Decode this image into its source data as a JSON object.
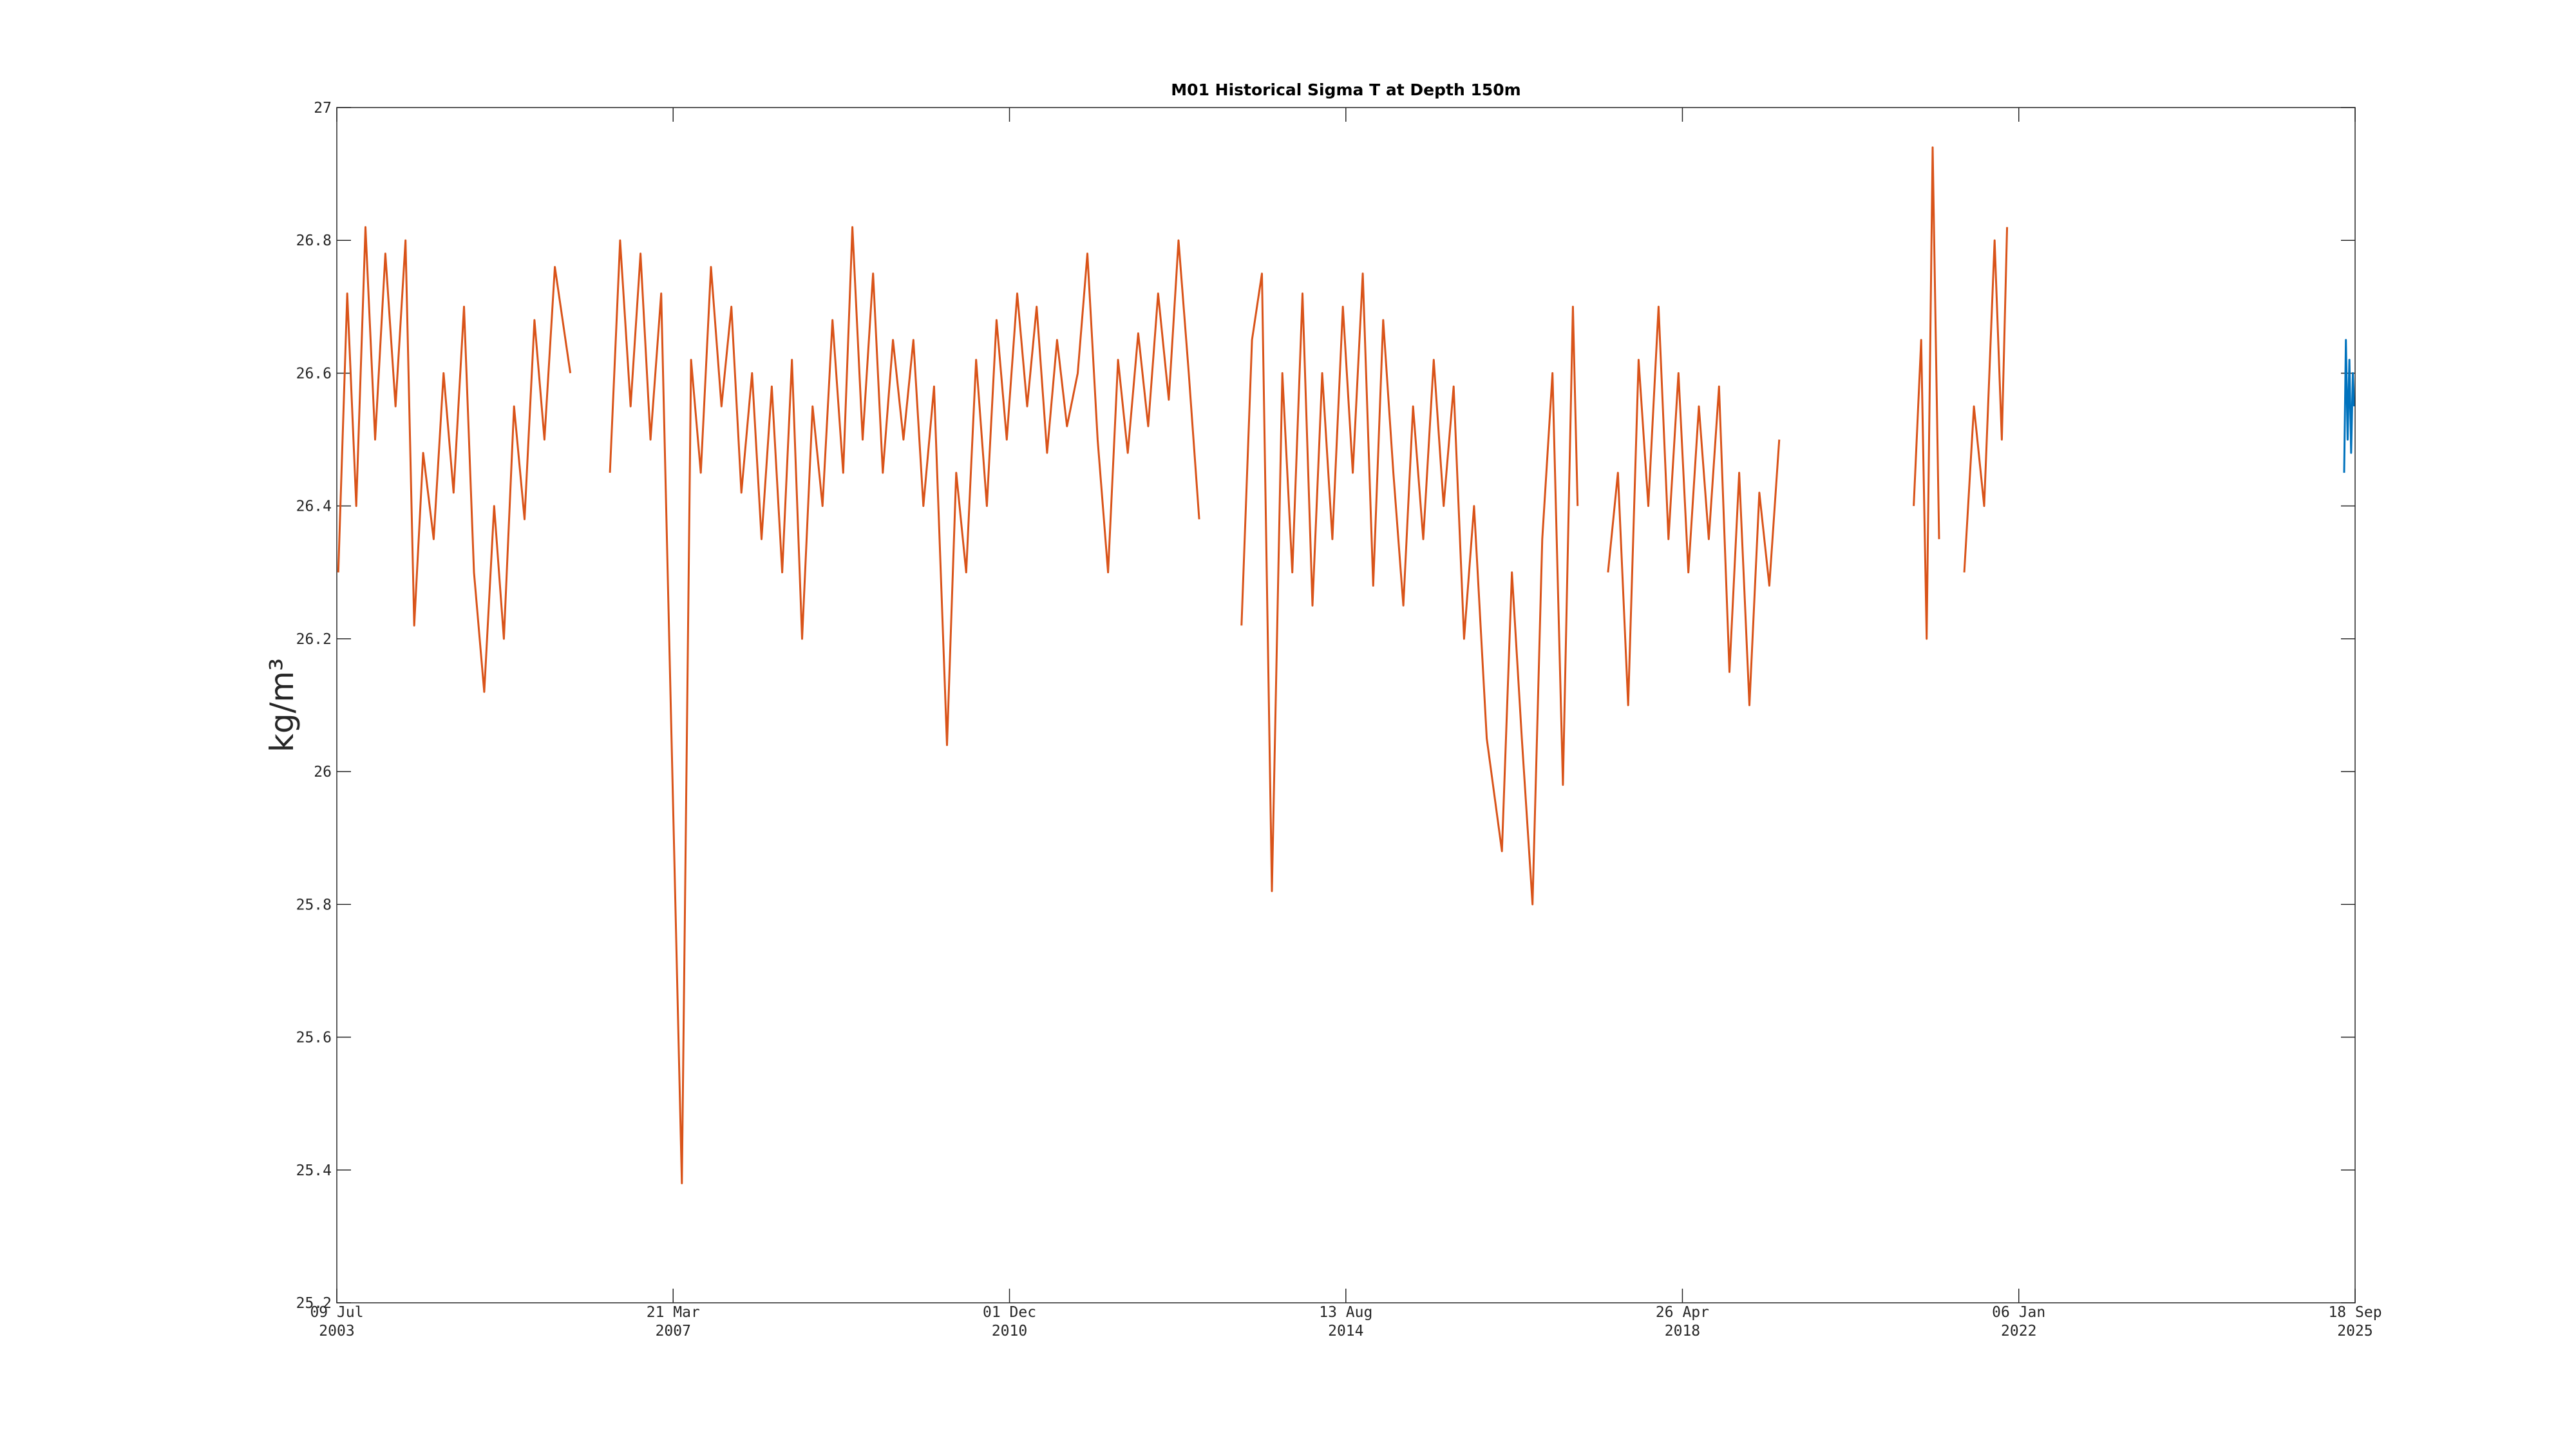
{
  "chart_data": {
    "type": "line",
    "title": "M01 Historical Sigma T at Depth 150m",
    "ylabel": "kg/m³",
    "xlim": [
      "2003-07-09",
      "2025-09-18"
    ],
    "xticks": [
      {
        "value": "2003-07-09",
        "label": "09 Jul 2003"
      },
      {
        "value": "2007-03-21",
        "label": "21 Mar 2007"
      },
      {
        "value": "2010-12-01",
        "label": "01 Dec 2010"
      },
      {
        "value": "2014-08-13",
        "label": "13 Aug 2014"
      },
      {
        "value": "2018-04-26",
        "label": "26 Apr 2018"
      },
      {
        "value": "2022-01-06",
        "label": "06 Jan 2022"
      },
      {
        "value": "2025-09-18",
        "label": "18 Sep 2025"
      }
    ],
    "ylim": [
      25.2,
      27
    ],
    "yticks": [
      25.2,
      25.4,
      25.6,
      25.8,
      26,
      26.2,
      26.4,
      26.6,
      26.8,
      27
    ],
    "grid": false,
    "series": [
      {
        "color": "#d95319",
        "x": [
          "2003-07-15",
          "2003-08-20",
          "2003-09-25",
          "2003-11-01",
          "2003-12-10",
          "2004-01-20",
          "2004-03-01",
          "2004-04-10",
          "2004-05-15",
          "2004-06-20",
          "2004-08-01",
          "2004-09-10",
          "2004-10-20",
          "2004-12-01",
          "2005-01-10",
          "2005-02-20",
          "2005-04-01",
          "2005-05-10",
          "2005-06-20",
          "2005-08-01",
          "2005-09-10",
          "2005-10-20",
          "2005-12-01",
          "2006-02-01",
          "2006-04-01",
          "2006-07-10",
          "2006-08-20",
          "2006-10-01",
          "2006-11-10",
          "2006-12-20",
          "2007-02-01",
          "2007-04-25",
          "2007-06-01",
          "2007-07-10",
          "2007-08-20",
          "2007-10-01",
          "2007-11-10",
          "2007-12-20",
          "2008-02-01",
          "2008-03-10",
          "2008-04-20",
          "2008-06-01",
          "2008-07-10",
          "2008-08-20",
          "2008-10-01",
          "2008-11-10",
          "2008-12-20",
          "2009-02-01",
          "2009-03-10",
          "2009-04-20",
          "2009-06-01",
          "2009-07-10",
          "2009-08-20",
          "2009-10-01",
          "2009-11-10",
          "2009-12-20",
          "2010-02-01",
          "2010-03-25",
          "2010-05-01",
          "2010-06-10",
          "2010-07-20",
          "2010-09-01",
          "2010-10-10",
          "2010-11-20",
          "2011-01-01",
          "2011-02-10",
          "2011-03-20",
          "2011-05-01",
          "2011-06-10",
          "2011-07-20",
          "2011-09-01",
          "2011-10-10",
          "2011-11-20",
          "2012-01-01",
          "2012-02-10",
          "2012-03-20",
          "2012-05-01",
          "2012-06-10",
          "2012-07-20",
          "2012-09-01",
          "2012-10-10",
          "2012-11-20",
          "2013-01-01",
          "2013-03-15",
          "2013-06-20",
          "2013-08-01",
          "2013-09-10",
          "2013-10-20",
          "2013-12-01",
          "2014-01-10",
          "2014-02-20",
          "2014-04-01",
          "2014-05-10",
          "2014-06-20",
          "2014-08-01",
          "2014-09-10",
          "2014-10-20",
          "2014-12-01",
          "2015-01-10",
          "2015-02-20",
          "2015-04-01",
          "2015-05-10",
          "2015-06-20",
          "2015-08-01",
          "2015-09-10",
          "2015-10-20",
          "2015-12-01",
          "2016-01-10",
          "2016-03-01",
          "2016-05-01",
          "2016-06-10",
          "2016-07-20",
          "2016-09-01",
          "2016-10-10",
          "2016-11-20",
          "2017-01-01",
          "2017-02-10",
          "2017-03-01",
          "2017-04-15",
          "2017-07-01",
          "2017-08-10",
          "2017-09-20",
          "2017-11-01",
          "2017-12-10",
          "2018-01-20",
          "2018-03-01",
          "2018-04-10",
          "2018-05-20",
          "2018-07-01",
          "2018-08-10",
          "2018-09-20",
          "2018-11-01",
          "2018-12-10",
          "2019-01-20",
          "2019-03-01",
          "2019-04-10",
          "2019-05-20",
          "2019-07-01",
          "2020-11-10",
          "2020-12-10",
          "2021-01-01",
          "2021-01-25",
          "2021-02-20",
          "2021-04-01",
          "2021-06-01",
          "2021-07-10",
          "2021-08-20",
          "2021-10-01",
          "2021-10-30",
          "2021-11-20"
        ],
        "values": [
          26.3,
          26.72,
          26.4,
          26.82,
          26.5,
          26.78,
          26.55,
          26.8,
          26.22,
          26.48,
          26.35,
          26.6,
          26.42,
          26.7,
          26.3,
          26.12,
          26.4,
          26.2,
          26.55,
          26.38,
          26.68,
          26.5,
          26.76,
          26.6,
          null,
          26.45,
          26.8,
          26.55,
          26.78,
          26.5,
          26.72,
          25.38,
          26.62,
          26.45,
          26.76,
          26.55,
          26.7,
          26.42,
          26.6,
          26.35,
          26.58,
          26.3,
          26.62,
          26.2,
          26.55,
          26.4,
          26.68,
          26.45,
          26.82,
          26.5,
          26.75,
          26.45,
          26.65,
          26.5,
          26.65,
          26.4,
          26.58,
          26.04,
          26.45,
          26.3,
          26.62,
          26.4,
          26.68,
          26.5,
          26.72,
          26.55,
          26.7,
          26.48,
          26.65,
          26.52,
          26.6,
          26.78,
          26.5,
          26.3,
          26.62,
          26.48,
          26.66,
          26.52,
          26.72,
          26.56,
          26.8,
          26.6,
          26.38,
          null,
          26.22,
          26.65,
          26.75,
          25.82,
          26.6,
          26.3,
          26.72,
          26.25,
          26.6,
          26.35,
          26.7,
          26.45,
          26.75,
          26.28,
          26.68,
          26.45,
          26.25,
          26.55,
          26.35,
          26.62,
          26.4,
          26.58,
          26.2,
          26.4,
          26.05,
          25.88,
          26.3,
          26.05,
          25.8,
          26.35,
          26.6,
          25.98,
          26.7,
          26.4,
          null,
          26.3,
          26.45,
          26.1,
          26.62,
          26.4,
          26.7,
          26.35,
          26.6,
          26.3,
          26.55,
          26.35,
          26.58,
          26.15,
          26.45,
          26.1,
          26.42,
          26.28,
          26.5,
          null,
          26.4,
          26.65,
          26.2,
          26.94,
          26.35,
          null,
          26.3,
          26.55,
          26.4,
          26.8,
          26.5,
          26.82
        ]
      },
      {
        "color": "#0072bd",
        "x": [
          "2025-08-05",
          "2025-08-12",
          "2025-08-19",
          "2025-08-26",
          "2025-09-02",
          "2025-09-09",
          "2025-09-14"
        ],
        "values": [
          26.45,
          26.65,
          26.5,
          26.62,
          26.48,
          26.6,
          26.55
        ]
      }
    ]
  }
}
